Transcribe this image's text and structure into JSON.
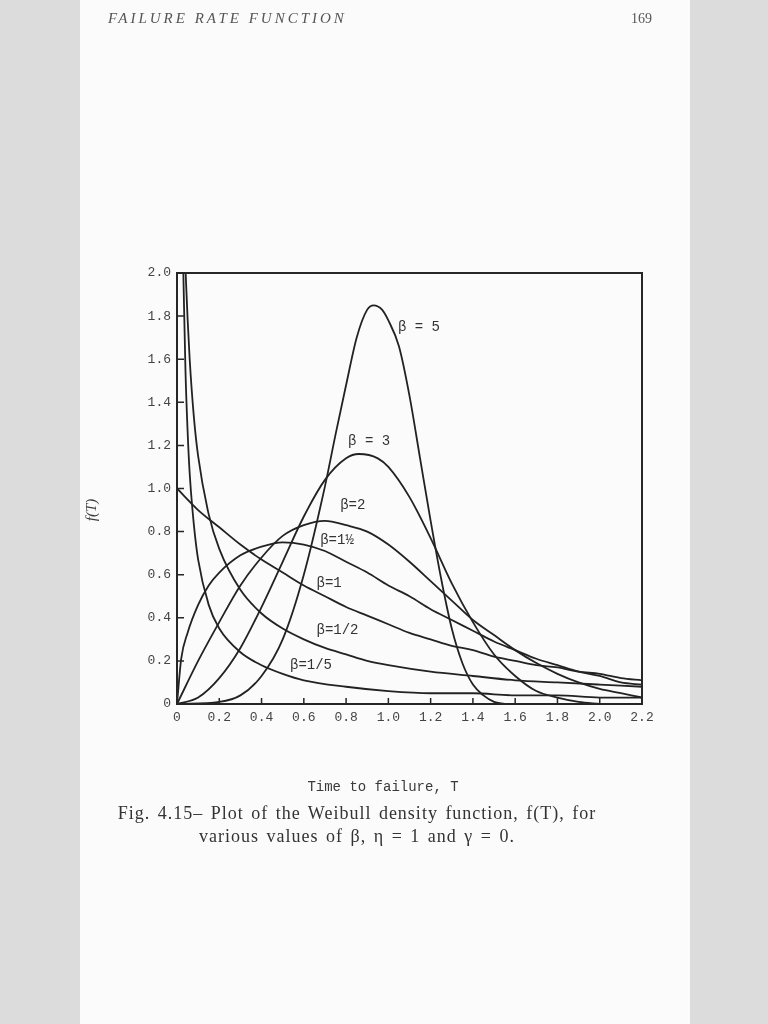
{
  "chart_data": {
    "type": "line",
    "xlabel": "Time to failure, T",
    "ylabel": "f(T)",
    "annotations": [
      "FAILURE RATE FUNCTION",
      "169",
      "Fig. 4.15– Plot of the Weibull density function, f(T), for various values of β, η = 1 and γ = 0."
    ],
    "xlim": [
      0,
      2.2
    ],
    "ylim": [
      0,
      2
    ],
    "xticks": [
      0,
      0.2,
      0.4,
      0.6,
      0.8,
      {
        "value": 1,
        "label": "1.0"
      },
      1.2,
      1.4,
      1.6,
      1.8,
      {
        "value": 2,
        "label": "2.0"
      },
      2.2
    ],
    "yticks": [
      0,
      0.2,
      0.4,
      0.6,
      0.8,
      {
        "value": 1,
        "label": "1.0"
      },
      1.2,
      1.4,
      1.6,
      1.8,
      {
        "value": 2,
        "label": "2.0"
      }
    ],
    "marker": "none",
    "line_style": "solid",
    "series": [
      {
        "name": "β = 5",
        "color": "#222222",
        "x": [
          0,
          0.2,
          0.3,
          0.4,
          0.5,
          0.6,
          0.7,
          0.75,
          0.8,
          0.85,
          0.9,
          0.93,
          0.97,
          1.0,
          1.05,
          1.1,
          1.15,
          1.2,
          1.25,
          1.3,
          1.35,
          1.4,
          1.45,
          1.5,
          1.55
        ],
        "values": [
          0,
          0.01,
          0.04,
          0.13,
          0.3,
          0.6,
          1.01,
          1.25,
          1.48,
          1.7,
          1.83,
          1.85,
          1.83,
          1.78,
          1.66,
          1.43,
          1.14,
          0.85,
          0.58,
          0.35,
          0.19,
          0.09,
          0.04,
          0.01,
          0
        ]
      },
      {
        "name": "β = 3",
        "color": "#222222",
        "x": [
          0,
          0.1,
          0.2,
          0.3,
          0.4,
          0.5,
          0.6,
          0.7,
          0.8,
          0.86,
          0.95,
          1.0,
          1.1,
          1.2,
          1.3,
          1.4,
          1.5,
          1.6,
          1.7,
          1.8,
          1.9,
          2.0
        ],
        "values": [
          0,
          0.03,
          0.12,
          0.26,
          0.45,
          0.66,
          0.87,
          1.04,
          1.14,
          1.16,
          1.14,
          1.1,
          0.96,
          0.77,
          0.56,
          0.38,
          0.23,
          0.13,
          0.06,
          0.03,
          0.01,
          0
        ]
      },
      {
        "name": "β=2",
        "color": "#222222",
        "x": [
          0,
          0.1,
          0.2,
          0.3,
          0.4,
          0.5,
          0.6,
          0.7,
          0.8,
          0.9,
          1.0,
          1.1,
          1.2,
          1.3,
          1.4,
          1.5,
          1.6,
          1.7,
          1.8,
          1.9,
          2.0,
          2.1,
          2.2
        ],
        "values": [
          0,
          0.2,
          0.38,
          0.55,
          0.68,
          0.78,
          0.83,
          0.85,
          0.83,
          0.8,
          0.74,
          0.66,
          0.57,
          0.48,
          0.39,
          0.32,
          0.25,
          0.19,
          0.14,
          0.1,
          0.07,
          0.05,
          0.03
        ]
      },
      {
        "name": "β=1½",
        "color": "#222222",
        "x": [
          0,
          0.02,
          0.05,
          0.1,
          0.15,
          0.2,
          0.3,
          0.4,
          0.5,
          0.6,
          0.7,
          0.8,
          0.9,
          1.0,
          1.1,
          1.2,
          1.3,
          1.4,
          1.5,
          1.6,
          1.7,
          1.8,
          1.9,
          2.0,
          2.1,
          2.2
        ],
        "values": [
          0,
          0.21,
          0.33,
          0.46,
          0.55,
          0.61,
          0.69,
          0.73,
          0.75,
          0.74,
          0.71,
          0.66,
          0.61,
          0.55,
          0.5,
          0.44,
          0.39,
          0.34,
          0.29,
          0.25,
          0.21,
          0.18,
          0.15,
          0.13,
          0.1,
          0.09
        ]
      },
      {
        "name": "β=1",
        "color": "#222222",
        "x": [
          0,
          0.1,
          0.2,
          0.3,
          0.4,
          0.5,
          0.6,
          0.7,
          0.8,
          0.9,
          1.0,
          1.1,
          1.2,
          1.3,
          1.4,
          1.5,
          1.6,
          1.7,
          1.8,
          1.9,
          2.0,
          2.1,
          2.2
        ],
        "values": [
          1.0,
          0.9,
          0.82,
          0.74,
          0.67,
          0.61,
          0.55,
          0.5,
          0.45,
          0.41,
          0.37,
          0.33,
          0.3,
          0.27,
          0.25,
          0.22,
          0.2,
          0.18,
          0.17,
          0.15,
          0.14,
          0.12,
          0.11
        ]
      },
      {
        "name": "β=1/2",
        "color": "#222222",
        "x": [
          0.041,
          0.05,
          0.06,
          0.08,
          0.1,
          0.15,
          0.2,
          0.3,
          0.4,
          0.5,
          0.6,
          0.7,
          0.8,
          0.9,
          1.0,
          1.2,
          1.4,
          1.6,
          1.8,
          2.0,
          2.2
        ],
        "values": [
          2.0,
          1.79,
          1.6,
          1.33,
          1.15,
          0.88,
          0.72,
          0.53,
          0.42,
          0.35,
          0.3,
          0.26,
          0.23,
          0.2,
          0.18,
          0.15,
          0.13,
          0.11,
          0.1,
          0.09,
          0.08
        ]
      },
      {
        "name": "β=1/5",
        "color": "#222222",
        "x": [
          0.03,
          0.04,
          0.05,
          0.06,
          0.08,
          0.1,
          0.15,
          0.2,
          0.3,
          0.4,
          0.5,
          0.6,
          0.8,
          1.0,
          1.2,
          1.4,
          1.6,
          1.8,
          2.0,
          2.2
        ],
        "values": [
          2.0,
          1.55,
          1.27,
          1.07,
          0.83,
          0.67,
          0.46,
          0.35,
          0.24,
          0.18,
          0.14,
          0.11,
          0.08,
          0.06,
          0.05,
          0.05,
          0.04,
          0.04,
          0.03,
          0.03
        ]
      }
    ]
  }
}
